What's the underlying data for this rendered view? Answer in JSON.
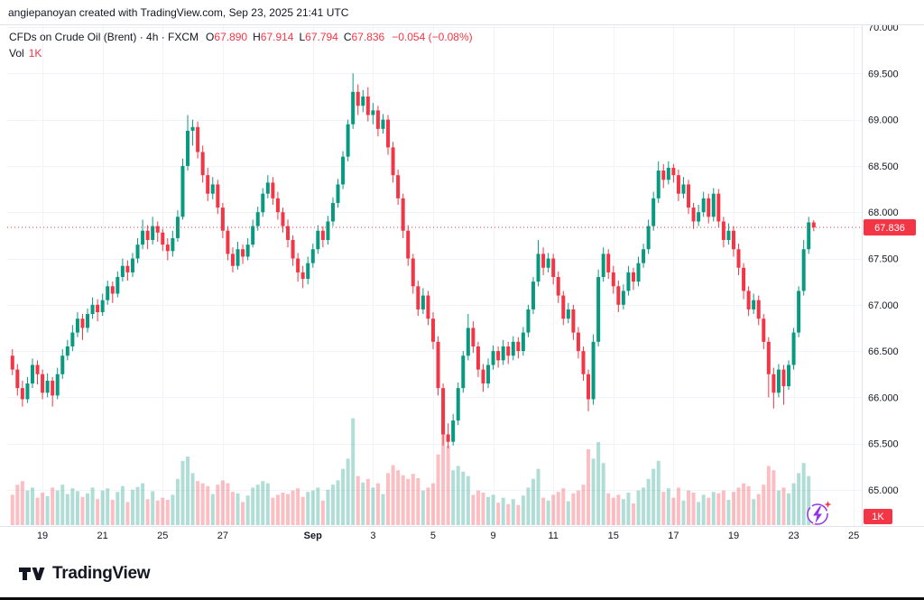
{
  "attribution": "angiepanoyan created with TradingView.com, Sep 23, 2025 21:41 UTC",
  "legend": {
    "symbol": "CFDs on Crude Oil (Brent) · 4h · FXCM",
    "open_label": "O",
    "open": "67.890",
    "high_label": "H",
    "high": "67.914",
    "low_label": "L",
    "low": "67.794",
    "close_label": "C",
    "close": "67.836",
    "change": "−0.054 (−0.08%)",
    "vol_label": "Vol",
    "vol_value": "1K"
  },
  "price_scale": {
    "last_price_label": "67.836",
    "vol_badge": "1K"
  },
  "footer": {
    "brand": "TradingView"
  },
  "chart_data": {
    "type": "candlestick+volume",
    "title": "CFDs on Crude Oil (Brent) · 4h · FXCM",
    "symbol": "CFDs on Crude Oil (Brent)",
    "interval": "4h",
    "exchange": "FXCM",
    "ohlc_legend": {
      "open": 67.89,
      "high": 67.914,
      "low": 67.794,
      "close": 67.836,
      "change": -0.054,
      "change_pct": -0.08
    },
    "last_price": 67.836,
    "volume_axis_label": "1K",
    "y_axis": {
      "min": 65.0,
      "max": 70.0,
      "step": 0.5,
      "tick_labels": [
        "70.000",
        "69.500",
        "69.000",
        "68.500",
        "68.000",
        "67.500",
        "67.000",
        "66.500",
        "66.000",
        "65.500",
        "65.000"
      ]
    },
    "x_axis": {
      "ticks": [
        {
          "label": "19",
          "i": 6
        },
        {
          "label": "21",
          "i": 18
        },
        {
          "label": "25",
          "i": 30
        },
        {
          "label": "27",
          "i": 42
        },
        {
          "label": "Sep",
          "i": 60,
          "bold": true
        },
        {
          "label": "3",
          "i": 72
        },
        {
          "label": "5",
          "i": 84
        },
        {
          "label": "9",
          "i": 96
        },
        {
          "label": "11",
          "i": 108
        },
        {
          "label": "15",
          "i": 120
        },
        {
          "label": "17",
          "i": 132
        },
        {
          "label": "19",
          "i": 144
        },
        {
          "label": "23",
          "i": 156
        },
        {
          "label": "25",
          "i": 168
        }
      ]
    },
    "colors": {
      "up": "#089981",
      "down": "#f23645",
      "up_vol": "rgba(8,153,129,0.32)",
      "down_vol": "rgba(242,54,69,0.32)",
      "grid": "#f0f3fa",
      "separator": "#e0e3eb",
      "last_line": "#f23645",
      "flash": "#9333ea"
    },
    "candles": [
      [
        66.45,
        66.52,
        66.24,
        66.3,
        420
      ],
      [
        66.3,
        66.36,
        66.02,
        66.1,
        560
      ],
      [
        66.1,
        66.18,
        65.9,
        65.98,
        610
      ],
      [
        65.98,
        66.22,
        65.94,
        66.15,
        480
      ],
      [
        66.15,
        66.42,
        66.1,
        66.35,
        520
      ],
      [
        66.35,
        66.4,
        66.14,
        66.25,
        380
      ],
      [
        66.25,
        66.3,
        65.98,
        66.05,
        450
      ],
      [
        66.05,
        66.26,
        66.0,
        66.18,
        400
      ],
      [
        66.18,
        66.22,
        65.9,
        66.02,
        520
      ],
      [
        66.02,
        66.32,
        65.98,
        66.25,
        480
      ],
      [
        66.25,
        66.52,
        66.2,
        66.45,
        560
      ],
      [
        66.45,
        66.62,
        66.4,
        66.55,
        430
      ],
      [
        66.55,
        66.78,
        66.5,
        66.7,
        510
      ],
      [
        66.7,
        66.92,
        66.65,
        66.85,
        470
      ],
      [
        66.85,
        66.9,
        66.62,
        66.75,
        390
      ],
      [
        66.75,
        66.96,
        66.7,
        66.9,
        440
      ],
      [
        66.9,
        67.08,
        66.85,
        67.0,
        520
      ],
      [
        67.0,
        67.06,
        66.82,
        66.92,
        360
      ],
      [
        66.92,
        67.12,
        66.88,
        67.05,
        480
      ],
      [
        67.05,
        67.26,
        67.0,
        67.2,
        510
      ],
      [
        67.2,
        67.25,
        67.02,
        67.12,
        350
      ],
      [
        67.12,
        67.36,
        67.08,
        67.3,
        460
      ],
      [
        67.3,
        67.5,
        67.25,
        67.42,
        540
      ],
      [
        67.42,
        67.48,
        67.26,
        67.35,
        320
      ],
      [
        67.35,
        67.56,
        67.3,
        67.5,
        490
      ],
      [
        67.5,
        67.72,
        67.45,
        67.65,
        530
      ],
      [
        67.65,
        67.92,
        67.6,
        67.8,
        580
      ],
      [
        67.8,
        67.86,
        67.6,
        67.7,
        360
      ],
      [
        67.7,
        67.95,
        67.65,
        67.85,
        470
      ],
      [
        67.85,
        67.9,
        67.68,
        67.78,
        340
      ],
      [
        67.78,
        67.82,
        67.58,
        67.65,
        380
      ],
      [
        67.65,
        67.72,
        67.48,
        67.58,
        350
      ],
      [
        67.58,
        67.8,
        67.52,
        67.72,
        420
      ],
      [
        67.72,
        68.02,
        67.68,
        67.95,
        640
      ],
      [
        67.95,
        68.58,
        67.92,
        68.5,
        890
      ],
      [
        68.5,
        69.05,
        68.45,
        68.88,
        950
      ],
      [
        68.88,
        69.0,
        68.72,
        68.92,
        720
      ],
      [
        68.92,
        68.98,
        68.58,
        68.65,
        610
      ],
      [
        68.65,
        68.72,
        68.32,
        68.4,
        580
      ],
      [
        68.4,
        68.48,
        68.12,
        68.2,
        540
      ],
      [
        68.2,
        68.38,
        68.14,
        68.3,
        430
      ],
      [
        68.3,
        68.35,
        67.98,
        68.05,
        560
      ],
      [
        68.05,
        68.1,
        67.72,
        67.8,
        620
      ],
      [
        67.8,
        67.85,
        67.48,
        67.55,
        580
      ],
      [
        67.55,
        67.62,
        67.35,
        67.42,
        460
      ],
      [
        67.42,
        67.68,
        67.38,
        67.6,
        440
      ],
      [
        67.6,
        67.65,
        67.44,
        67.52,
        320
      ],
      [
        67.52,
        67.72,
        67.48,
        67.65,
        410
      ],
      [
        67.65,
        67.92,
        67.62,
        67.85,
        520
      ],
      [
        67.85,
        68.06,
        67.8,
        68.0,
        560
      ],
      [
        68.0,
        68.26,
        67.95,
        68.2,
        610
      ],
      [
        68.2,
        68.4,
        68.15,
        68.32,
        580
      ],
      [
        68.32,
        68.38,
        68.08,
        68.15,
        380
      ],
      [
        68.15,
        68.22,
        67.92,
        68.0,
        420
      ],
      [
        68.0,
        68.05,
        67.78,
        67.85,
        450
      ],
      [
        67.85,
        67.92,
        67.62,
        67.7,
        430
      ],
      [
        67.7,
        67.75,
        67.42,
        67.5,
        480
      ],
      [
        67.5,
        67.56,
        67.25,
        67.35,
        510
      ],
      [
        67.35,
        67.42,
        67.18,
        67.28,
        390
      ],
      [
        67.28,
        67.52,
        67.22,
        67.45,
        460
      ],
      [
        67.45,
        67.66,
        67.4,
        67.6,
        480
      ],
      [
        67.6,
        67.86,
        67.55,
        67.8,
        520
      ],
      [
        67.8,
        67.85,
        67.62,
        67.7,
        340
      ],
      [
        67.7,
        67.96,
        67.65,
        67.9,
        490
      ],
      [
        67.9,
        68.16,
        67.85,
        68.1,
        560
      ],
      [
        68.1,
        68.36,
        68.05,
        68.3,
        620
      ],
      [
        68.3,
        68.66,
        68.25,
        68.6,
        780
      ],
      [
        68.6,
        69.0,
        68.55,
        68.95,
        920
      ],
      [
        68.95,
        69.5,
        68.9,
        69.3,
        1480
      ],
      [
        69.3,
        69.38,
        69.05,
        69.15,
        680
      ],
      [
        69.15,
        69.32,
        69.08,
        69.25,
        590
      ],
      [
        69.25,
        69.35,
        68.98,
        69.05,
        640
      ],
      [
        69.05,
        69.18,
        68.95,
        69.1,
        520
      ],
      [
        69.1,
        69.15,
        68.82,
        68.9,
        580
      ],
      [
        68.9,
        69.06,
        68.85,
        69.0,
        430
      ],
      [
        69.0,
        69.05,
        68.62,
        68.7,
        720
      ],
      [
        68.7,
        68.76,
        68.32,
        68.4,
        830
      ],
      [
        68.4,
        68.46,
        68.08,
        68.15,
        760
      ],
      [
        68.15,
        68.2,
        67.72,
        67.8,
        690
      ],
      [
        67.8,
        67.86,
        67.42,
        67.5,
        640
      ],
      [
        67.5,
        67.55,
        67.12,
        67.2,
        710
      ],
      [
        67.2,
        67.26,
        66.88,
        66.95,
        650
      ],
      [
        66.95,
        67.18,
        66.9,
        67.1,
        480
      ],
      [
        67.1,
        67.15,
        66.78,
        66.85,
        520
      ],
      [
        66.85,
        66.92,
        66.52,
        66.6,
        580
      ],
      [
        66.6,
        66.66,
        66.02,
        66.1,
        980
      ],
      [
        66.1,
        66.15,
        65.48,
        65.6,
        1350
      ],
      [
        65.6,
        65.72,
        65.45,
        65.52,
        1100
      ],
      [
        65.52,
        65.82,
        65.48,
        65.75,
        760
      ],
      [
        65.75,
        66.16,
        65.7,
        66.1,
        820
      ],
      [
        66.1,
        66.5,
        66.05,
        66.45,
        740
      ],
      [
        66.45,
        66.9,
        66.4,
        66.75,
        680
      ],
      [
        66.75,
        66.82,
        66.48,
        66.55,
        420
      ],
      [
        66.55,
        66.6,
        66.22,
        66.3,
        480
      ],
      [
        66.3,
        66.36,
        66.06,
        66.15,
        450
      ],
      [
        66.15,
        66.42,
        66.1,
        66.35,
        390
      ],
      [
        66.35,
        66.56,
        66.3,
        66.5,
        420
      ],
      [
        66.5,
        66.55,
        66.32,
        66.4,
        310
      ],
      [
        66.4,
        66.62,
        66.35,
        66.55,
        380
      ],
      [
        66.55,
        66.6,
        66.36,
        66.45,
        290
      ],
      [
        66.45,
        66.66,
        66.4,
        66.6,
        360
      ],
      [
        66.6,
        66.65,
        66.42,
        66.5,
        280
      ],
      [
        66.5,
        66.76,
        66.45,
        66.7,
        410
      ],
      [
        66.7,
        67.0,
        66.65,
        66.95,
        520
      ],
      [
        66.95,
        67.3,
        66.9,
        67.25,
        640
      ],
      [
        67.25,
        67.7,
        67.2,
        67.55,
        780
      ],
      [
        67.55,
        67.62,
        67.32,
        67.4,
        380
      ],
      [
        67.4,
        67.56,
        67.35,
        67.5,
        340
      ],
      [
        67.5,
        67.55,
        67.22,
        67.3,
        420
      ],
      [
        67.3,
        67.36,
        67.02,
        67.1,
        460
      ],
      [
        67.1,
        67.15,
        66.78,
        66.85,
        510
      ],
      [
        66.85,
        67.02,
        66.8,
        66.95,
        330
      ],
      [
        66.95,
        67.0,
        66.62,
        66.7,
        440
      ],
      [
        66.7,
        66.76,
        66.42,
        66.5,
        480
      ],
      [
        66.5,
        66.55,
        66.18,
        66.25,
        560
      ],
      [
        66.25,
        66.3,
        65.85,
        65.98,
        1050
      ],
      [
        65.98,
        66.68,
        65.92,
        66.6,
        920
      ],
      [
        66.6,
        67.38,
        66.55,
        67.3,
        1150
      ],
      [
        67.3,
        67.62,
        67.25,
        67.55,
        860
      ],
      [
        67.55,
        67.6,
        67.28,
        67.35,
        440
      ],
      [
        67.35,
        67.42,
        67.12,
        67.2,
        380
      ],
      [
        67.2,
        67.26,
        66.92,
        67.0,
        420
      ],
      [
        67.0,
        67.22,
        66.95,
        67.15,
        360
      ],
      [
        67.15,
        67.42,
        67.1,
        67.35,
        450
      ],
      [
        67.35,
        67.4,
        67.16,
        67.25,
        300
      ],
      [
        67.25,
        67.52,
        67.2,
        67.45,
        480
      ],
      [
        67.45,
        67.66,
        67.4,
        67.6,
        520
      ],
      [
        67.6,
        67.92,
        67.55,
        67.85,
        640
      ],
      [
        67.85,
        68.22,
        67.8,
        68.15,
        780
      ],
      [
        68.15,
        68.55,
        68.1,
        68.45,
        890
      ],
      [
        68.45,
        68.52,
        68.26,
        68.35,
        460
      ],
      [
        68.35,
        68.55,
        68.3,
        68.48,
        510
      ],
      [
        68.48,
        68.52,
        68.32,
        68.4,
        380
      ],
      [
        68.4,
        68.46,
        68.12,
        68.2,
        520
      ],
      [
        68.2,
        68.38,
        68.15,
        68.3,
        340
      ],
      [
        68.3,
        68.35,
        67.98,
        68.05,
        480
      ],
      [
        68.05,
        68.1,
        67.82,
        67.9,
        450
      ],
      [
        67.9,
        68.08,
        67.85,
        68.0,
        320
      ],
      [
        68.0,
        68.22,
        67.95,
        68.15,
        420
      ],
      [
        68.15,
        68.2,
        67.88,
        67.95,
        380
      ],
      [
        67.95,
        68.26,
        67.9,
        68.2,
        460
      ],
      [
        68.2,
        68.25,
        67.84,
        67.9,
        440
      ],
      [
        67.9,
        67.95,
        67.62,
        67.7,
        480
      ],
      [
        67.7,
        67.88,
        67.65,
        67.8,
        350
      ],
      [
        67.8,
        67.85,
        67.52,
        67.6,
        460
      ],
      [
        67.6,
        67.66,
        67.32,
        67.4,
        520
      ],
      [
        67.4,
        67.45,
        67.06,
        67.15,
        580
      ],
      [
        67.15,
        67.2,
        66.88,
        66.95,
        540
      ],
      [
        66.95,
        67.12,
        66.9,
        67.05,
        360
      ],
      [
        67.05,
        67.1,
        66.78,
        66.85,
        430
      ],
      [
        66.85,
        66.9,
        66.52,
        66.6,
        560
      ],
      [
        66.6,
        66.65,
        66.0,
        66.25,
        820
      ],
      [
        66.25,
        66.32,
        65.88,
        66.05,
        760
      ],
      [
        66.05,
        66.36,
        66.0,
        66.3,
        480
      ],
      [
        66.3,
        66.35,
        65.92,
        66.12,
        520
      ],
      [
        66.12,
        66.4,
        66.08,
        66.35,
        440
      ],
      [
        66.35,
        66.75,
        66.3,
        66.7,
        580
      ],
      [
        66.7,
        67.2,
        66.65,
        67.15,
        720
      ],
      [
        67.15,
        67.7,
        67.1,
        67.6,
        860
      ],
      [
        67.6,
        67.95,
        67.55,
        67.89,
        680
      ],
      [
        67.89,
        67.914,
        67.794,
        67.836,
        240
      ]
    ]
  }
}
